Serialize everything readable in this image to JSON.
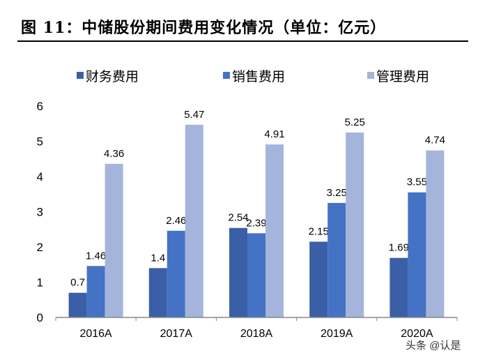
{
  "title": "图 11：中储股份期间费用变化情况（单位：亿元）",
  "watermark": "头条 @认是",
  "chart_data": {
    "type": "bar",
    "title": "图 11：中储股份期间费用变化情况（单位：亿元）",
    "categories": [
      "2016A",
      "2017A",
      "2018A",
      "2019A",
      "2020A"
    ],
    "series": [
      {
        "name": "财务费用",
        "values": [
          0.7,
          1.4,
          2.54,
          2.15,
          1.69
        ],
        "color": "#3A5FA6"
      },
      {
        "name": "销售费用",
        "values": [
          1.46,
          2.46,
          2.39,
          3.25,
          3.55
        ],
        "color": "#4472C4"
      },
      {
        "name": "管理费用",
        "values": [
          4.36,
          5.47,
          4.91,
          5.25,
          4.74
        ],
        "color": "#A5B4DA"
      }
    ],
    "data_labels": [
      [
        "0.7",
        "1.4",
        "2.54",
        "2.15",
        "1.69"
      ],
      [
        "1.46",
        "2.46",
        "2.39",
        "3.25",
        "3.55"
      ],
      [
        "4.36",
        "5.47",
        "4.91",
        "5.25",
        "4.74"
      ]
    ],
    "yticks": [
      "0",
      "1",
      "2",
      "3",
      "4",
      "5",
      "6"
    ],
    "ylim": [
      0,
      6
    ],
    "grid": false,
    "legend": "top"
  }
}
